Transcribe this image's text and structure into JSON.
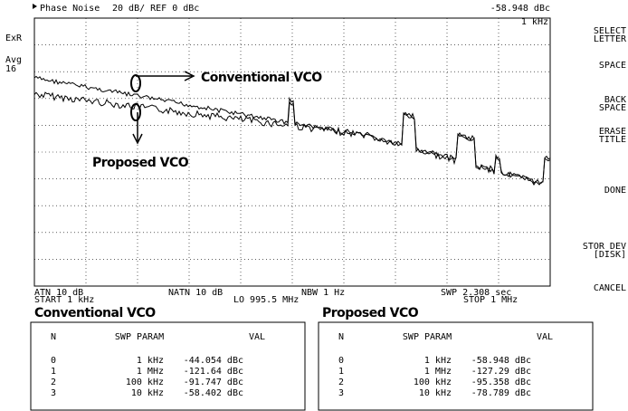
{
  "header": {
    "title": "Phase Noise",
    "scale": "20 dB/ REF 0 dBc",
    "marker_value": "-58.948 dBc",
    "marker_freq": "1 kHz"
  },
  "status": [
    "ExR",
    "Avg",
    "16"
  ],
  "softkeys": [
    [
      "SELECT",
      "LETTER"
    ],
    [
      "SPACE"
    ],
    [
      "BACK",
      "SPACE"
    ],
    [
      "ERASE",
      "TITLE"
    ],
    [
      "DONE"
    ],
    [
      "STOR DEV",
      "[DISK]"
    ],
    [
      "CANCEL"
    ]
  ],
  "footer": {
    "atn": "ATN  10 dB",
    "start": "START  1 kHz",
    "natn": "NATN  10 dB",
    "lo": "LO   995.5 MHz",
    "nbw": "NBW  1 Hz",
    "swp": "SWP  2.308 sec",
    "stop": "STOP  1 MHz"
  },
  "annotations": {
    "conventional": "Conventional VCO",
    "proposed": "Proposed VCO"
  },
  "tables": [
    {
      "title": "Conventional VCO",
      "columns": [
        "N",
        "SWP PARAM",
        "VAL"
      ],
      "rows": [
        [
          "0",
          "1 kHz",
          "-44.054 dBc"
        ],
        [
          "1",
          "1 MHz",
          "-121.64 dBc"
        ],
        [
          "2",
          "100 kHz",
          "-91.747 dBc"
        ],
        [
          "3",
          "10 kHz",
          "-58.402 dBc"
        ]
      ]
    },
    {
      "title": "Proposed VCO",
      "columns": [
        "N",
        "SWP PARAM",
        "VAL"
      ],
      "rows": [
        [
          "0",
          "1 kHz",
          "-58.948 dBc"
        ],
        [
          "1",
          "1 MHz",
          "-127.29 dBc"
        ],
        [
          "2",
          "100 kHz",
          "-95.358 dBc"
        ],
        [
          "3",
          "10 kHz",
          "-78.789 dBc"
        ]
      ]
    }
  ]
}
